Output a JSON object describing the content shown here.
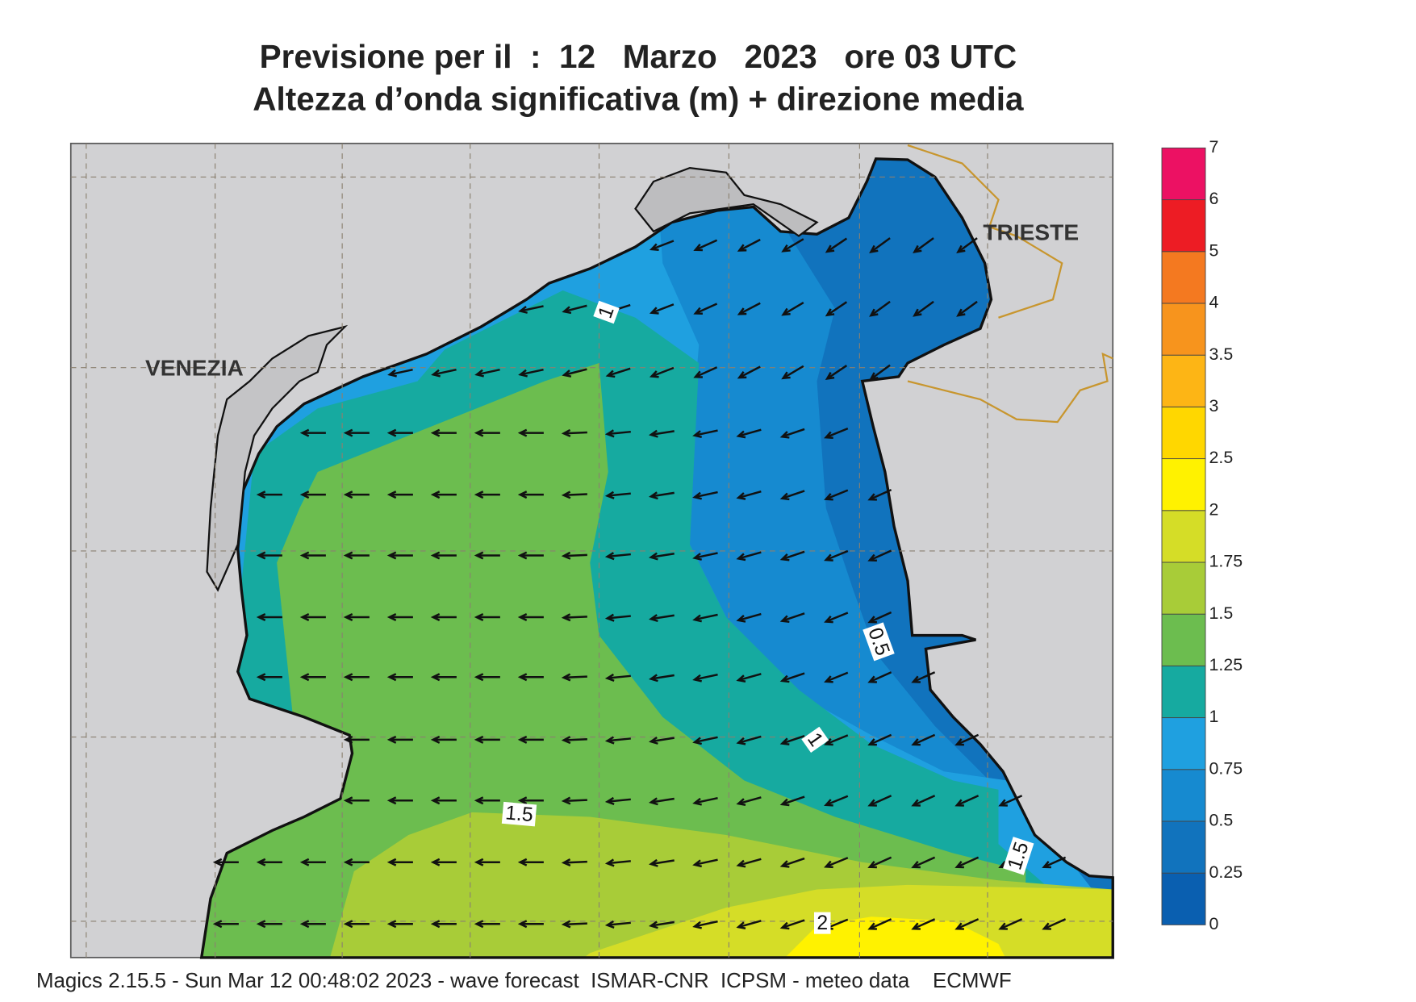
{
  "title": "Previsione per il  :  12   Marzo   2023   ore 03 UTC",
  "subtitle": "Altezza d’onda significativa (m) + direzione media",
  "places": [
    {
      "label": "VENEZIA"
    },
    {
      "label": "TRIESTE"
    }
  ],
  "contour_labels": [
    1,
    0.5,
    1,
    1.5,
    1.5,
    2
  ],
  "colorbar": {
    "levels": [
      0,
      0.25,
      0.5,
      0.75,
      1,
      1.25,
      1.5,
      1.75,
      2,
      2.5,
      3,
      3.5,
      4,
      5,
      6,
      7
    ],
    "colors": [
      "#0a5fb0",
      "#1173bd",
      "#168ad0",
      "#1fa0e0",
      "#16aaa0",
      "#6cbd4f",
      "#a8cc38",
      "#d5dd27",
      "#fff200",
      "#ffd700",
      "#fdb515",
      "#f7941d",
      "#f47920",
      "#ed1c24",
      "#ec1163"
    ]
  },
  "footer": "Magics 2.15.5 - Sun Mar 12 00:48:02 2023 - wave forecast  ISMAR-CNR  ICPSM - meteo data    ECMWF"
}
